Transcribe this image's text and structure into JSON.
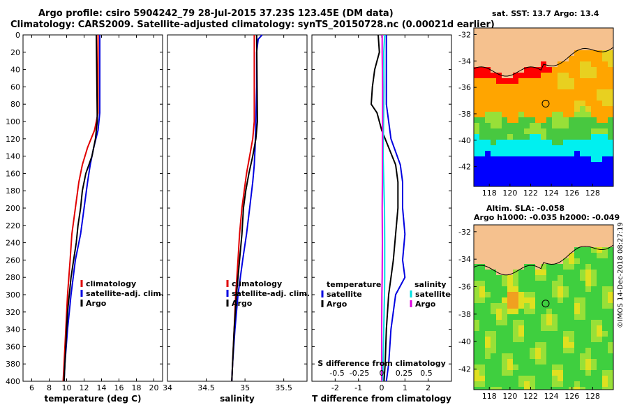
{
  "header": {
    "line1": "Argo profile: csiro 5904242_79 28-Jul-2015 37.23S 123.45E (DM data)",
    "line2": "Climatology: CARS2009. Satellite-adjusted climatology: synTS_20150728.nc (0.00021d earlier)"
  },
  "depth_ticks": [
    0,
    20,
    40,
    60,
    80,
    100,
    120,
    140,
    160,
    180,
    200,
    220,
    240,
    260,
    280,
    300,
    320,
    340,
    360,
    380,
    400
  ],
  "chart_data": [
    {
      "type": "line",
      "panel": "temperature",
      "xlabel": "temperature (deg C)",
      "xlim": [
        5,
        21
      ],
      "ylim": [
        400,
        0
      ],
      "xticks": [
        "6",
        "8",
        "10",
        "12",
        "14",
        "16",
        "18",
        "20"
      ],
      "xtick_values": [
        6,
        8,
        10,
        12,
        14,
        16,
        18,
        20
      ],
      "legend": [
        "climatology",
        "satellite-adj. clim.",
        "Argo"
      ],
      "series": [
        {
          "name": "climatology",
          "color": "#e00000",
          "depth": [
            0,
            90,
            110,
            130,
            150,
            170,
            200,
            230,
            260,
            300,
            340,
            380,
            400
          ],
          "values": [
            13.6,
            13.6,
            13.2,
            12.4,
            11.8,
            11.4,
            11.0,
            10.6,
            10.4,
            10.1,
            9.9,
            9.7,
            9.6
          ]
        },
        {
          "name": "satellite-adj. clim.",
          "color": "#0000e0",
          "depth": [
            0,
            90,
            110,
            130,
            150,
            170,
            200,
            230,
            260,
            300,
            340,
            380,
            400
          ],
          "values": [
            13.8,
            13.8,
            13.6,
            13.1,
            12.7,
            12.4,
            12.0,
            11.6,
            11.0,
            10.5,
            10.1,
            9.8,
            9.7
          ]
        },
        {
          "name": "Argo",
          "color": "#000000",
          "depth": [
            0,
            90,
            100,
            120,
            140,
            160,
            180,
            200,
            220,
            240,
            260,
            280,
            300,
            320,
            340,
            360,
            380,
            400
          ],
          "values": [
            13.4,
            13.5,
            13.5,
            13.3,
            12.9,
            12.2,
            11.8,
            11.6,
            11.3,
            11.1,
            10.8,
            10.5,
            10.3,
            10.1,
            10.0,
            9.9,
            9.8,
            9.7
          ]
        }
      ]
    },
    {
      "type": "line",
      "panel": "salinity",
      "xlabel": "salinity",
      "xlim": [
        34,
        35.8
      ],
      "ylim": [
        400,
        0
      ],
      "xticks": [
        "34",
        "34.5",
        "35",
        "35.5"
      ],
      "xtick_values": [
        34,
        34.5,
        35,
        35.5
      ],
      "legend": [
        "climatology",
        "satellite-adj. clim.",
        "Argo"
      ],
      "series": [
        {
          "name": "climatology",
          "color": "#e00000",
          "depth": [
            0,
            100,
            120,
            140,
            160,
            180,
            200,
            230,
            260,
            300,
            340,
            380,
            400
          ],
          "values": [
            35.12,
            35.12,
            35.1,
            35.06,
            35.02,
            34.99,
            34.96,
            34.93,
            34.91,
            34.88,
            34.86,
            34.84,
            34.83
          ]
        },
        {
          "name": "satellite-adj. clim.",
          "color": "#0000e0",
          "depth": [
            0,
            5,
            20,
            60,
            100,
            130,
            150,
            170,
            200,
            230,
            260,
            300,
            340,
            380,
            400
          ],
          "values": [
            35.22,
            35.17,
            35.15,
            35.15,
            35.14,
            35.13,
            35.12,
            35.1,
            35.06,
            35.02,
            34.97,
            34.91,
            34.87,
            34.84,
            34.83
          ]
        },
        {
          "name": "Argo",
          "color": "#000000",
          "depth": [
            0,
            100,
            120,
            140,
            160,
            180,
            200,
            230,
            260,
            300,
            340,
            380,
            400
          ],
          "values": [
            35.15,
            35.16,
            35.14,
            35.1,
            35.05,
            35.01,
            34.98,
            34.96,
            34.93,
            34.89,
            34.86,
            34.84,
            34.83
          ]
        }
      ]
    },
    {
      "type": "line",
      "panel": "difference",
      "xlabel": "T difference from climatology",
      "xlim": [
        -3,
        3
      ],
      "ylim": [
        400,
        0
      ],
      "xticks": [
        "-2",
        "-1",
        "0",
        "1",
        "2"
      ],
      "xtick_values": [
        -2,
        -1,
        0,
        1,
        2
      ],
      "top_axis_label": "S difference from climatology",
      "top_ticks": [
        "-0.5",
        "-0.25",
        "0",
        "0.25",
        "0.5"
      ],
      "top_tick_values": [
        -0.5,
        -0.25,
        0,
        0.25,
        0.5
      ],
      "legend_temperature_title": "temperature",
      "legend_salinity_title": "salinity",
      "legend_temperature": [
        "satellite",
        "Argo"
      ],
      "legend_salinity": [
        "satellite",
        "Argo"
      ],
      "series": [
        {
          "name": "T satellite",
          "color": "#0000e0",
          "depth": [
            0,
            40,
            80,
            120,
            150,
            170,
            200,
            230,
            260,
            280,
            300,
            340,
            380,
            400
          ],
          "values": [
            0.2,
            0.2,
            0.2,
            0.4,
            0.8,
            0.9,
            0.9,
            1.0,
            0.9,
            1.0,
            0.6,
            0.4,
            0.3,
            0.2
          ]
        },
        {
          "name": "T Argo",
          "color": "#000000",
          "depth": [
            0,
            20,
            40,
            60,
            80,
            90,
            110,
            130,
            150,
            170,
            200,
            230,
            260,
            300,
            340,
            380,
            400
          ],
          "values": [
            -0.15,
            -0.1,
            -0.3,
            -0.4,
            -0.45,
            -0.2,
            0.0,
            0.3,
            0.6,
            0.7,
            0.7,
            0.6,
            0.5,
            0.3,
            0.2,
            0.15,
            0.1
          ]
        },
        {
          "name": "S satellite",
          "color": "#00e0e0",
          "depth": [
            0,
            5,
            20,
            60,
            100,
            140,
            160,
            200,
            240,
            280,
            300,
            340,
            380,
            400
          ],
          "values": [
            0.13,
            0.12,
            0.09,
            0.1,
            0.08,
            0.06,
            0.08,
            0.12,
            0.13,
            0.13,
            0.12,
            0.09,
            0.06,
            0.04
          ]
        },
        {
          "name": "S Argo",
          "color": "#e000e0",
          "depth": [
            0,
            20,
            60,
            100,
            140,
            170,
            200,
            240,
            280,
            300,
            340,
            380,
            400
          ],
          "values": [
            0.02,
            0.02,
            0.04,
            0.04,
            0.03,
            0.03,
            0.02,
            0.03,
            0.02,
            0.01,
            0.0,
            0.0,
            0.0
          ]
        }
      ]
    }
  ],
  "maps": {
    "top_title": "sat. SST: 13.7  Argo: 13.4",
    "bottom_title1": "Altim. SLA: -0.058",
    "bottom_title2": "Argo h1000: -0.035  h2000: -0.049",
    "lat_ticks": [
      "-32",
      "-34",
      "-36",
      "-38",
      "-40",
      "-42"
    ],
    "lat_values": [
      -32,
      -34,
      -36,
      -38,
      -40,
      -42
    ],
    "lon_ticks": [
      "118",
      "120",
      "122",
      "124",
      "126",
      "128"
    ],
    "lon_values": [
      118,
      120,
      122,
      124,
      126,
      128
    ],
    "lon_range": [
      116.5,
      130
    ],
    "lat_range": [
      -31.5,
      -43.5
    ],
    "argo_position": {
      "lon": 123.45,
      "lat": -37.23
    },
    "colors": {
      "land": "#f5c18e",
      "red": "#ff0000",
      "orange": "#ffa500",
      "yellow": "#e8d020",
      "green": "#48c840",
      "lightgreen": "#98e038",
      "cyan": "#00f0f0",
      "blue": "#0000ff",
      "sla_green": "#3fcf3f",
      "sla_yellow": "#e0e020",
      "sla_orange": "#f0a020"
    }
  },
  "stamp": "©IMOS 14-Dec-2018 08:27:19"
}
